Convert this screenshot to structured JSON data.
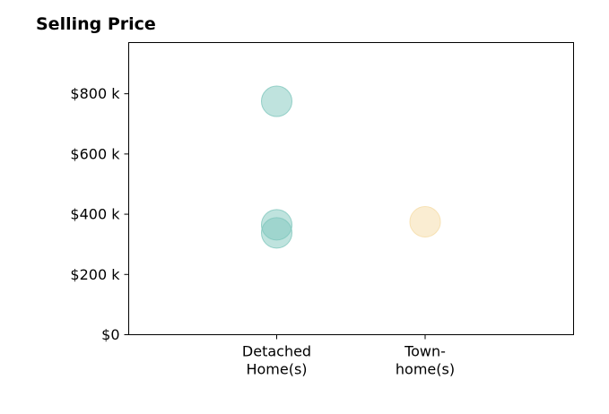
{
  "chart_data": {
    "type": "scatter",
    "title": "Selling Price",
    "xlabel": "",
    "ylabel": "",
    "categories": [
      [
        "Detached",
        "Home(s)"
      ],
      [
        "Town-",
        "home(s)"
      ]
    ],
    "ylim": [
      0,
      970000
    ],
    "yticks": [
      {
        "value": 0,
        "label": "$0"
      },
      {
        "value": 200000,
        "label": "$200 k"
      },
      {
        "value": 400000,
        "label": "$400 k"
      },
      {
        "value": 600000,
        "label": "$600 k"
      },
      {
        "value": 800000,
        "label": "$800 k"
      }
    ],
    "grid": false,
    "series": [
      {
        "color": "#7fc7bd",
        "points": [
          {
            "category": 0,
            "y": 775000
          },
          {
            "category": 0,
            "y": 365000
          },
          {
            "category": 0,
            "y": 338000
          }
        ]
      },
      {
        "color": "#f5dca6",
        "points": [
          {
            "category": 1,
            "y": 375000
          }
        ]
      }
    ]
  }
}
